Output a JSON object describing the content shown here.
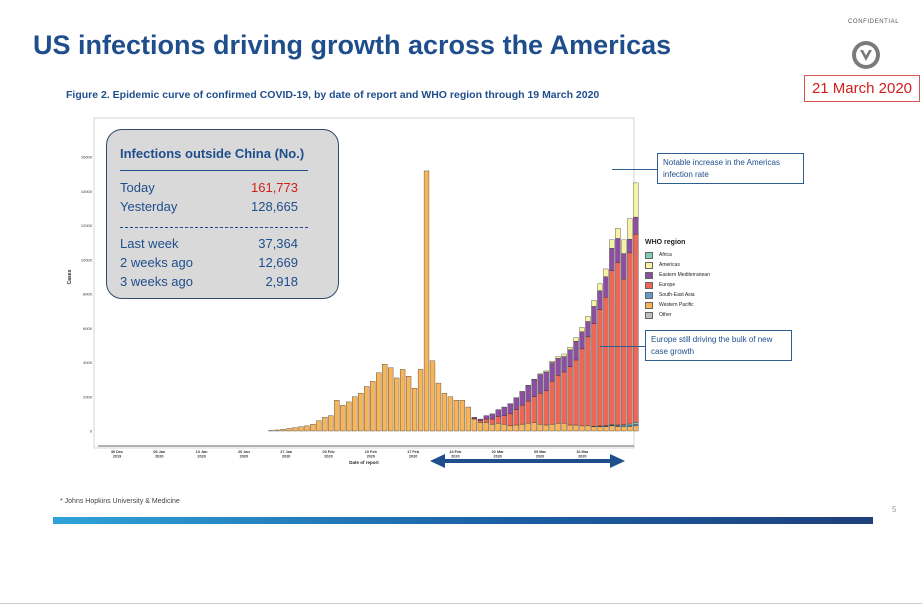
{
  "slide": {
    "title": "US infections driving growth across the Americas",
    "confidential": "CONFIDENTIAL",
    "date": "21 March 2020",
    "figure_title": "Figure 2. Epidemic curve of confirmed COVID-19, by date of report and WHO region through 19 March 2020",
    "source": "* Johns Hopkins University & Medicine",
    "page_number": "5",
    "logo_icon": "shield-chevron-logo-icon"
  },
  "infobox": {
    "title": "Infections outside China (No.)",
    "rows": [
      {
        "label": "Today",
        "value": "161,773"
      },
      {
        "label": "Yesterday",
        "value": "128,665"
      },
      {
        "label": "Last week",
        "value": "37,364"
      },
      {
        "label": "2 weeks ago",
        "value": "12,669"
      },
      {
        "label": "3 weeks ago",
        "value": "2,918"
      }
    ],
    "highlight_color": "#d0201b"
  },
  "callouts": {
    "top": "Notable increase in the Americas infection rate",
    "bottom": "Europe still driving the bulk of new case growth"
  },
  "arrow_color": "#1f4e8c",
  "chart_data": {
    "type": "bar",
    "stacked": true,
    "ylabel": "Cases",
    "xlabel": "Date of report",
    "ylim": [
      0,
      18000
    ],
    "yticks": [
      0,
      2000,
      4000,
      6000,
      8000,
      10000,
      12000,
      14000,
      16000
    ],
    "xtick_labels": [
      [
        "30 Dec",
        "2019"
      ],
      [
        "06 Jan",
        "2020"
      ],
      [
        "13 Jan",
        "2020"
      ],
      [
        "20 Jan",
        "2020"
      ],
      [
        "27 Jan",
        "2020"
      ],
      [
        "03 Feb",
        "2020"
      ],
      [
        "10 Feb",
        "2020"
      ],
      [
        "17 Feb",
        "2020"
      ],
      [
        "24 Feb",
        "2020"
      ],
      [
        "02 Mar",
        "2020"
      ],
      [
        "09 Mar",
        "2020"
      ],
      [
        "16 Mar",
        "2020"
      ]
    ],
    "x_start": "2019-12-31",
    "legend_title": "WHO region",
    "legend_position": "right",
    "series": [
      {
        "name": "Africa",
        "color": "#7fcdbb",
        "values": [
          0,
          0,
          0,
          0,
          0,
          0,
          0,
          0,
          0,
          0,
          0,
          0,
          0,
          0,
          0,
          0,
          0,
          0,
          0,
          0,
          0,
          0,
          0,
          0,
          0,
          0,
          0,
          0,
          0,
          0,
          0,
          0,
          0,
          0,
          0,
          0,
          0,
          0,
          0,
          0,
          0,
          0,
          0,
          0,
          0,
          0,
          0,
          0,
          0,
          0,
          0,
          0,
          0,
          0,
          0,
          0,
          0,
          0,
          0,
          0,
          0,
          0,
          0,
          0,
          0,
          0,
          0,
          0,
          0,
          0,
          0,
          0,
          0,
          0,
          10,
          20,
          30,
          40,
          50,
          60,
          80,
          100
        ]
      },
      {
        "name": "Americas",
        "color": "#f7f3a6",
        "values": [
          0,
          0,
          0,
          0,
          0,
          0,
          0,
          0,
          0,
          0,
          0,
          0,
          0,
          0,
          0,
          0,
          0,
          0,
          0,
          0,
          0,
          0,
          0,
          0,
          0,
          0,
          0,
          0,
          0,
          0,
          0,
          0,
          0,
          0,
          0,
          0,
          0,
          0,
          0,
          0,
          0,
          0,
          0,
          0,
          0,
          0,
          0,
          0,
          0,
          0,
          0,
          0,
          0,
          0,
          0,
          0,
          0,
          0,
          0,
          0,
          0,
          0,
          10,
          20,
          30,
          40,
          60,
          80,
          100,
          150,
          150,
          200,
          250,
          300,
          350,
          400,
          450,
          500,
          600,
          800,
          1200,
          2000
        ]
      },
      {
        "name": "Eastern Mediterranean",
        "color": "#8c4f9f",
        "values": [
          0,
          0,
          0,
          0,
          0,
          0,
          0,
          0,
          0,
          0,
          0,
          0,
          0,
          0,
          0,
          0,
          0,
          0,
          0,
          0,
          0,
          0,
          0,
          0,
          0,
          0,
          0,
          0,
          0,
          0,
          0,
          0,
          0,
          0,
          0,
          0,
          0,
          0,
          0,
          0,
          0,
          0,
          0,
          0,
          0,
          0,
          0,
          0,
          0,
          0,
          0,
          0,
          0,
          0,
          50,
          100,
          200,
          300,
          400,
          500,
          600,
          700,
          800,
          900,
          1000,
          1100,
          1100,
          1100,
          1000,
          900,
          1000,
          1100,
          1000,
          900,
          1000,
          1100,
          1200,
          1300,
          1400,
          1500,
          800,
          1000
        ]
      },
      {
        "name": "Europe",
        "color": "#ee6655",
        "values": [
          0,
          0,
          0,
          0,
          0,
          0,
          0,
          0,
          0,
          0,
          0,
          0,
          0,
          0,
          0,
          0,
          0,
          0,
          0,
          0,
          0,
          0,
          0,
          0,
          0,
          0,
          0,
          0,
          0,
          0,
          0,
          0,
          0,
          0,
          0,
          0,
          0,
          0,
          0,
          0,
          0,
          0,
          0,
          0,
          0,
          0,
          0,
          0,
          0,
          0,
          0,
          0,
          0,
          0,
          50,
          100,
          200,
          300,
          400,
          500,
          700,
          900,
          1100,
          1300,
          1500,
          1800,
          2000,
          2500,
          2800,
          3000,
          3400,
          3800,
          4500,
          5200,
          6000,
          6800,
          7500,
          9000,
          9500,
          8500,
          10000,
          11000
        ]
      },
      {
        "name": "South-East Asia",
        "color": "#6699c8",
        "values": [
          0,
          0,
          0,
          0,
          0,
          0,
          0,
          0,
          0,
          0,
          0,
          0,
          0,
          0,
          0,
          0,
          0,
          0,
          0,
          0,
          0,
          0,
          0,
          0,
          0,
          0,
          0,
          0,
          0,
          0,
          0,
          0,
          0,
          0,
          0,
          0,
          0,
          0,
          0,
          0,
          0,
          0,
          0,
          0,
          0,
          0,
          0,
          0,
          0,
          0,
          0,
          0,
          0,
          0,
          0,
          0,
          0,
          0,
          0,
          0,
          0,
          0,
          0,
          0,
          0,
          0,
          0,
          0,
          0,
          0,
          0,
          0,
          0,
          0,
          20,
          30,
          40,
          40,
          50,
          60,
          80,
          100
        ]
      },
      {
        "name": "Western Pacific",
        "color": "#f8b458",
        "values": [
          0,
          0,
          0,
          0,
          0,
          0,
          0,
          0,
          0,
          0,
          0,
          0,
          0,
          0,
          0,
          0,
          0,
          0,
          0,
          0,
          30,
          60,
          100,
          150,
          200,
          250,
          300,
          400,
          600,
          800,
          900,
          1800,
          1500,
          1700,
          2000,
          2200,
          2600,
          2900,
          3400,
          3900,
          3700,
          3100,
          3600,
          3200,
          2500,
          3600,
          15200,
          4100,
          2800,
          2200,
          2000,
          1800,
          1800,
          1400,
          700,
          500,
          500,
          400,
          450,
          400,
          300,
          350,
          400,
          450,
          500,
          400,
          350,
          400,
          450,
          450,
          350,
          350,
          300,
          300,
          250,
          250,
          250,
          300,
          250,
          250,
          250,
          300
        ]
      },
      {
        "name": "Other",
        "color": "#bfbfbf",
        "values": [
          0,
          0,
          0,
          0,
          0,
          0,
          0,
          0,
          0,
          0,
          0,
          0,
          0,
          0,
          0,
          0,
          0,
          0,
          0,
          0,
          0,
          0,
          0,
          0,
          0,
          0,
          0,
          0,
          0,
          0,
          0,
          0,
          0,
          0,
          0,
          0,
          0,
          0,
          0,
          0,
          0,
          0,
          0,
          0,
          0,
          0,
          0,
          0,
          0,
          0,
          0,
          0,
          0,
          0,
          0,
          0,
          0,
          0,
          0,
          0,
          0,
          0,
          0,
          0,
          0,
          0,
          0,
          0,
          0,
          0,
          0,
          0,
          0,
          0,
          0,
          0,
          0,
          0,
          0,
          0,
          0,
          0
        ]
      }
    ]
  }
}
